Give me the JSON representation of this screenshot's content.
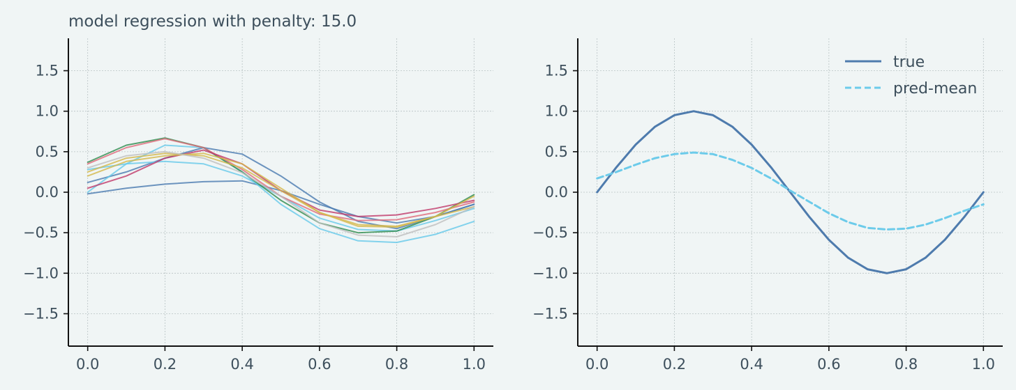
{
  "chart_data": [
    {
      "type": "line",
      "title": "model regression with penalty: 15.0",
      "xlabel": "",
      "ylabel": "",
      "xlim": [
        -0.05,
        1.05
      ],
      "ylim": [
        -1.9,
        1.9
      ],
      "xticks": [
        "0.0",
        "0.2",
        "0.4",
        "0.6",
        "0.8",
        "1.0"
      ],
      "yticks": [
        "1.5",
        "1.0",
        "0.5",
        "0.0",
        "−0.5",
        "−1.0",
        "−1.5"
      ],
      "grid": true,
      "x": [
        0,
        0.1,
        0.2,
        0.3,
        0.4,
        0.5,
        0.6,
        0.7,
        0.8,
        0.9,
        1.0
      ],
      "series": [
        {
          "color": "#4a7ab0",
          "values": [
            -0.02,
            0.05,
            0.1,
            0.13,
            0.14,
            0.02,
            -0.15,
            -0.3,
            -0.38,
            -0.3,
            -0.15
          ]
        },
        {
          "color": "#4a7ab0",
          "values": [
            0.12,
            0.25,
            0.42,
            0.55,
            0.47,
            0.2,
            -0.12,
            -0.36,
            -0.45,
            -0.3,
            -0.15
          ]
        },
        {
          "color": "#67c9ea",
          "values": [
            0.0,
            0.35,
            0.58,
            0.55,
            0.25,
            -0.15,
            -0.45,
            -0.6,
            -0.62,
            -0.52,
            -0.36
          ]
        },
        {
          "color": "#67c9ea",
          "values": [
            0.28,
            0.35,
            0.38,
            0.35,
            0.2,
            -0.05,
            -0.32,
            -0.46,
            -0.48,
            -0.35,
            -0.2
          ]
        },
        {
          "color": "#2e8b4e",
          "values": [
            0.37,
            0.58,
            0.67,
            0.55,
            0.25,
            -0.1,
            -0.38,
            -0.5,
            -0.48,
            -0.3,
            -0.03
          ]
        },
        {
          "color": "#e06a7a",
          "values": [
            0.35,
            0.55,
            0.66,
            0.55,
            0.28,
            -0.05,
            -0.27,
            -0.35,
            -0.34,
            -0.25,
            -0.12
          ]
        },
        {
          "color": "#c03a6a",
          "values": [
            0.05,
            0.2,
            0.42,
            0.52,
            0.35,
            0.02,
            -0.22,
            -0.3,
            -0.28,
            -0.2,
            -0.1
          ]
        },
        {
          "color": "#d4b84a",
          "values": [
            0.2,
            0.38,
            0.45,
            0.48,
            0.35,
            0.05,
            -0.25,
            -0.42,
            -0.43,
            -0.3,
            -0.05
          ]
        },
        {
          "color": "#d4b84a",
          "values": [
            0.25,
            0.42,
            0.48,
            0.45,
            0.3,
            0.02,
            -0.25,
            -0.4,
            -0.42,
            -0.3,
            -0.18
          ]
        },
        {
          "color": "#bfbfbf",
          "values": [
            0.3,
            0.45,
            0.5,
            0.42,
            0.24,
            -0.05,
            -0.38,
            -0.53,
            -0.55,
            -0.4,
            -0.18
          ]
        }
      ]
    },
    {
      "type": "line",
      "title": "",
      "xlabel": "",
      "ylabel": "",
      "xlim": [
        -0.05,
        1.05
      ],
      "ylim": [
        -1.9,
        1.9
      ],
      "xticks": [
        "0.0",
        "0.2",
        "0.4",
        "0.6",
        "0.8",
        "1.0"
      ],
      "yticks": [
        "1.5",
        "1.0",
        "0.5",
        "0.0",
        "−0.5",
        "−1.0",
        "−1.5"
      ],
      "grid": true,
      "legend": "top-right",
      "x": [
        0,
        0.05,
        0.1,
        0.15,
        0.2,
        0.25,
        0.3,
        0.35,
        0.4,
        0.45,
        0.5,
        0.55,
        0.6,
        0.65,
        0.7,
        0.75,
        0.8,
        0.85,
        0.9,
        0.95,
        1.0
      ],
      "series": [
        {
          "name": "true",
          "color": "#4e7bad",
          "dash": false,
          "values": [
            0.0,
            0.309,
            0.588,
            0.809,
            0.951,
            1.0,
            0.951,
            0.809,
            0.588,
            0.309,
            0.0,
            -0.309,
            -0.588,
            -0.809,
            -0.951,
            -1.0,
            -0.951,
            -0.809,
            -0.588,
            -0.309,
            0.0
          ]
        },
        {
          "name": "pred-mean",
          "color": "#6ccbea",
          "dash": true,
          "values": [
            0.17,
            0.25,
            0.34,
            0.42,
            0.47,
            0.49,
            0.47,
            0.4,
            0.3,
            0.17,
            0.02,
            -0.12,
            -0.26,
            -0.37,
            -0.44,
            -0.46,
            -0.45,
            -0.4,
            -0.32,
            -0.23,
            -0.15
          ]
        }
      ]
    }
  ]
}
